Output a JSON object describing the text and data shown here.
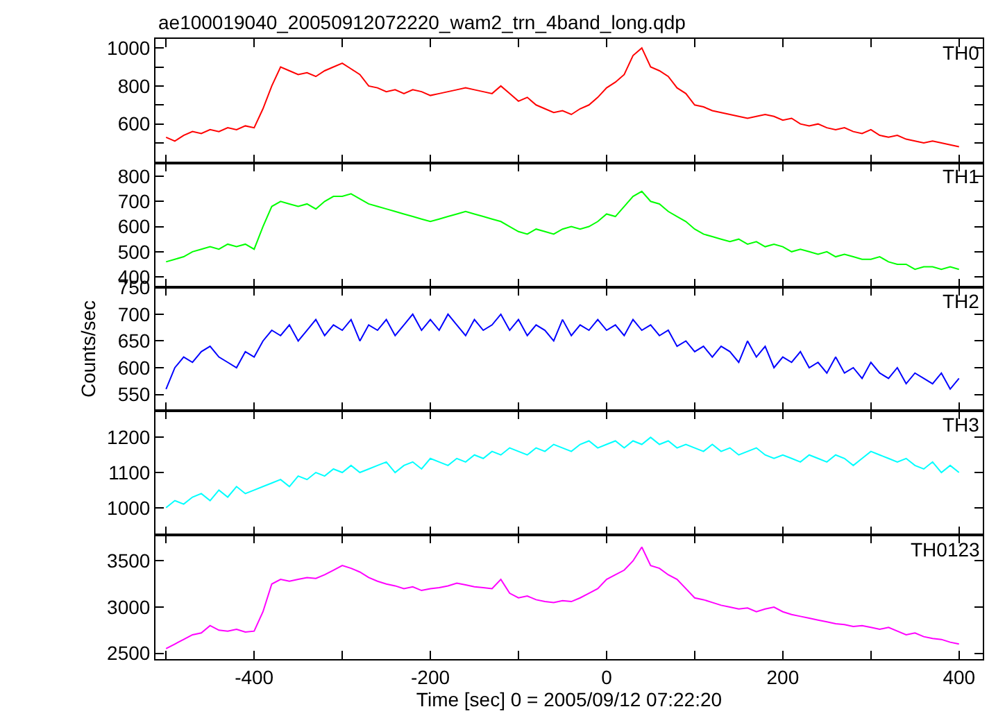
{
  "chart_data": [
    {
      "type": "line",
      "title": "ae100019040_20050912072220_wam2_trn_4band_long.qdp",
      "tick_labels": "y",
      "xlim": [
        -512,
        427
      ],
      "xticks": [
        {
          "value": -500,
          "label": null
        },
        -400,
        {
          "value": -300,
          "label": null
        },
        -200,
        {
          "value": -100,
          "label": null
        },
        0,
        {
          "value": 100,
          "label": null
        },
        200,
        {
          "value": 300,
          "label": null
        },
        400
      ],
      "ylim": [
        395,
        1048
      ],
      "yticks": [
        {
          "value": 500,
          "label": null
        },
        600,
        {
          "value": 700,
          "label": null
        },
        800,
        {
          "value": 900,
          "label": null
        },
        1000
      ],
      "x": [
        -500,
        -490,
        -480,
        -470,
        -460,
        -450,
        -440,
        -430,
        -420,
        -410,
        -400,
        -390,
        -380,
        -370,
        -360,
        -350,
        -340,
        -330,
        -320,
        -310,
        -300,
        -290,
        -280,
        -270,
        -260,
        -250,
        -240,
        -230,
        -220,
        -210,
        -200,
        -190,
        -180,
        -170,
        -160,
        -150,
        -140,
        -130,
        -120,
        -110,
        -100,
        -90,
        -80,
        -70,
        -60,
        -50,
        -40,
        -30,
        -20,
        -10,
        0,
        10,
        20,
        30,
        40,
        50,
        60,
        70,
        80,
        90,
        100,
        110,
        120,
        130,
        140,
        150,
        160,
        170,
        180,
        190,
        200,
        210,
        220,
        230,
        240,
        250,
        260,
        270,
        280,
        290,
        300,
        310,
        320,
        330,
        340,
        350,
        360,
        370,
        380,
        390,
        400
      ],
      "series": [
        {
          "name": "TH0",
          "color": "#ff0000",
          "values": [
            530,
            510,
            540,
            560,
            550,
            570,
            560,
            580,
            570,
            590,
            580,
            680,
            800,
            900,
            880,
            860,
            870,
            850,
            880,
            900,
            920,
            890,
            860,
            800,
            790,
            770,
            780,
            760,
            780,
            770,
            750,
            760,
            770,
            780,
            790,
            780,
            770,
            760,
            800,
            760,
            720,
            740,
            700,
            680,
            660,
            670,
            650,
            680,
            700,
            740,
            790,
            820,
            860,
            960,
            1000,
            900,
            880,
            850,
            790,
            760,
            700,
            690,
            670,
            660,
            650,
            640,
            630,
            640,
            650,
            640,
            620,
            630,
            600,
            590,
            600,
            580,
            570,
            580,
            560,
            550,
            570,
            540,
            530,
            540,
            520,
            510,
            500,
            510,
            500,
            490,
            480
          ]
        }
      ]
    },
    {
      "type": "line",
      "tick_labels": "y",
      "xlim": [
        -512,
        427
      ],
      "xticks": [
        {
          "value": -500,
          "label": null
        },
        -400,
        {
          "value": -300,
          "label": null
        },
        -200,
        {
          "value": -100,
          "label": null
        },
        0,
        {
          "value": 100,
          "label": null
        },
        200,
        {
          "value": 300,
          "label": null
        },
        400
      ],
      "ylim": [
        360,
        853
      ],
      "yticks": [
        400,
        500,
        600,
        700,
        800
      ],
      "x": [
        -500,
        -490,
        -480,
        -470,
        -460,
        -450,
        -440,
        -430,
        -420,
        -410,
        -400,
        -390,
        -380,
        -370,
        -360,
        -350,
        -340,
        -330,
        -320,
        -310,
        -300,
        -290,
        -280,
        -270,
        -260,
        -250,
        -240,
        -230,
        -220,
        -210,
        -200,
        -190,
        -180,
        -170,
        -160,
        -150,
        -140,
        -130,
        -120,
        -110,
        -100,
        -90,
        -80,
        -70,
        -60,
        -50,
        -40,
        -30,
        -20,
        -10,
        0,
        10,
        20,
        30,
        40,
        50,
        60,
        70,
        80,
        90,
        100,
        110,
        120,
        130,
        140,
        150,
        160,
        170,
        180,
        190,
        200,
        210,
        220,
        230,
        240,
        250,
        260,
        270,
        280,
        290,
        300,
        310,
        320,
        330,
        340,
        350,
        360,
        370,
        380,
        390,
        400
      ],
      "series": [
        {
          "name": "TH1",
          "color": "#00ff00",
          "values": [
            460,
            470,
            480,
            500,
            510,
            520,
            510,
            530,
            520,
            530,
            510,
            600,
            680,
            700,
            690,
            680,
            690,
            670,
            700,
            720,
            720,
            730,
            710,
            690,
            680,
            670,
            660,
            650,
            640,
            630,
            620,
            630,
            640,
            650,
            660,
            650,
            640,
            630,
            620,
            600,
            580,
            570,
            590,
            580,
            570,
            590,
            600,
            590,
            600,
            620,
            650,
            640,
            680,
            720,
            740,
            700,
            690,
            660,
            640,
            620,
            590,
            570,
            560,
            550,
            540,
            550,
            530,
            540,
            520,
            530,
            520,
            500,
            510,
            500,
            490,
            500,
            480,
            490,
            480,
            470,
            470,
            480,
            460,
            450,
            450,
            430,
            440,
            440,
            430,
            440,
            430
          ]
        }
      ]
    },
    {
      "type": "line",
      "ylabel": "Counts/sec",
      "tick_labels": "y",
      "xlim": [
        -512,
        427
      ],
      "xticks": [
        {
          "value": -500,
          "label": null
        },
        -400,
        {
          "value": -300,
          "label": null
        },
        -200,
        {
          "value": -100,
          "label": null
        },
        0,
        {
          "value": 100,
          "label": null
        },
        200,
        {
          "value": 300,
          "label": null
        },
        400
      ],
      "ylim": [
        519,
        751
      ],
      "yticks": [
        550,
        600,
        650,
        700,
        750
      ],
      "x": [
        -500,
        -490,
        -480,
        -470,
        -460,
        -450,
        -440,
        -430,
        -420,
        -410,
        -400,
        -390,
        -380,
        -370,
        -360,
        -350,
        -340,
        -330,
        -320,
        -310,
        -300,
        -290,
        -280,
        -270,
        -260,
        -250,
        -240,
        -230,
        -220,
        -210,
        -200,
        -190,
        -180,
        -170,
        -160,
        -150,
        -140,
        -130,
        -120,
        -110,
        -100,
        -90,
        -80,
        -70,
        -60,
        -50,
        -40,
        -30,
        -20,
        -10,
        0,
        10,
        20,
        30,
        40,
        50,
        60,
        70,
        80,
        90,
        100,
        110,
        120,
        130,
        140,
        150,
        160,
        170,
        180,
        190,
        200,
        210,
        220,
        230,
        240,
        250,
        260,
        270,
        280,
        290,
        300,
        310,
        320,
        330,
        340,
        350,
        360,
        370,
        380,
        390,
        400
      ],
      "series": [
        {
          "name": "TH2",
          "color": "#0000ff",
          "values": [
            560,
            600,
            620,
            610,
            630,
            640,
            620,
            610,
            600,
            630,
            620,
            650,
            670,
            660,
            680,
            650,
            670,
            690,
            660,
            680,
            670,
            690,
            650,
            680,
            670,
            690,
            660,
            680,
            700,
            670,
            690,
            670,
            700,
            680,
            660,
            690,
            670,
            680,
            700,
            670,
            690,
            660,
            680,
            670,
            650,
            690,
            660,
            680,
            670,
            690,
            670,
            680,
            660,
            690,
            670,
            680,
            660,
            670,
            640,
            650,
            630,
            640,
            620,
            640,
            630,
            610,
            650,
            620,
            640,
            600,
            620,
            610,
            630,
            600,
            610,
            590,
            620,
            590,
            600,
            580,
            610,
            590,
            580,
            600,
            570,
            590,
            580,
            570,
            590,
            560,
            580
          ]
        }
      ]
    },
    {
      "type": "line",
      "tick_labels": "y",
      "xlim": [
        -512,
        427
      ],
      "xticks": [
        {
          "value": -500,
          "label": null
        },
        -400,
        {
          "value": -300,
          "label": null
        },
        -200,
        {
          "value": -100,
          "label": null
        },
        0,
        {
          "value": 100,
          "label": null
        },
        200,
        {
          "value": 300,
          "label": null
        },
        400
      ],
      "ylim": [
        922,
        1275
      ],
      "yticks": [
        1000,
        1100,
        1200
      ],
      "x": [
        -500,
        -490,
        -480,
        -470,
        -460,
        -450,
        -440,
        -430,
        -420,
        -410,
        -400,
        -390,
        -380,
        -370,
        -360,
        -350,
        -340,
        -330,
        -320,
        -310,
        -300,
        -290,
        -280,
        -270,
        -260,
        -250,
        -240,
        -230,
        -220,
        -210,
        -200,
        -190,
        -180,
        -170,
        -160,
        -150,
        -140,
        -130,
        -120,
        -110,
        -100,
        -90,
        -80,
        -70,
        -60,
        -50,
        -40,
        -30,
        -20,
        -10,
        0,
        10,
        20,
        30,
        40,
        50,
        60,
        70,
        80,
        90,
        100,
        110,
        120,
        130,
        140,
        150,
        160,
        170,
        180,
        190,
        200,
        210,
        220,
        230,
        240,
        250,
        260,
        270,
        280,
        290,
        300,
        310,
        320,
        330,
        340,
        350,
        360,
        370,
        380,
        390,
        400
      ],
      "series": [
        {
          "name": "TH3",
          "color": "#00ffff",
          "values": [
            1000,
            1020,
            1010,
            1030,
            1040,
            1020,
            1050,
            1030,
            1060,
            1040,
            1050,
            1060,
            1070,
            1080,
            1060,
            1090,
            1080,
            1100,
            1090,
            1110,
            1100,
            1120,
            1100,
            1110,
            1120,
            1130,
            1100,
            1120,
            1130,
            1110,
            1140,
            1130,
            1120,
            1140,
            1130,
            1150,
            1140,
            1160,
            1150,
            1170,
            1160,
            1150,
            1170,
            1160,
            1180,
            1170,
            1160,
            1180,
            1190,
            1170,
            1180,
            1190,
            1170,
            1190,
            1180,
            1200,
            1180,
            1190,
            1170,
            1180,
            1170,
            1160,
            1180,
            1160,
            1170,
            1150,
            1160,
            1170,
            1150,
            1140,
            1150,
            1140,
            1130,
            1150,
            1140,
            1130,
            1150,
            1140,
            1120,
            1140,
            1160,
            1150,
            1140,
            1130,
            1140,
            1120,
            1110,
            1130,
            1100,
            1120,
            1100
          ]
        }
      ]
    },
    {
      "type": "line",
      "xlabel": "Time [sec] 0 = 2005/09/12 07:22:20",
      "xlim": [
        -512,
        427
      ],
      "xticks": [
        {
          "value": -500,
          "label": null
        },
        -400,
        {
          "value": -300,
          "label": null
        },
        -200,
        {
          "value": -100,
          "label": null
        },
        0,
        {
          "value": 100,
          "label": null
        },
        200,
        {
          "value": 300,
          "label": null
        },
        400
      ],
      "ylim": [
        2437,
        3780
      ],
      "yticks": [
        2500,
        3000,
        3500
      ],
      "x": [
        -500,
        -490,
        -480,
        -470,
        -460,
        -450,
        -440,
        -430,
        -420,
        -410,
        -400,
        -390,
        -380,
        -370,
        -360,
        -350,
        -340,
        -330,
        -320,
        -310,
        -300,
        -290,
        -280,
        -270,
        -260,
        -250,
        -240,
        -230,
        -220,
        -210,
        -200,
        -190,
        -180,
        -170,
        -160,
        -150,
        -140,
        -130,
        -120,
        -110,
        -100,
        -90,
        -80,
        -70,
        -60,
        -50,
        -40,
        -30,
        -20,
        -10,
        0,
        10,
        20,
        30,
        40,
        50,
        60,
        70,
        80,
        90,
        100,
        110,
        120,
        130,
        140,
        150,
        160,
        170,
        180,
        190,
        200,
        210,
        220,
        230,
        240,
        250,
        260,
        270,
        280,
        290,
        300,
        310,
        320,
        330,
        340,
        350,
        360,
        370,
        380,
        390,
        400
      ],
      "series": [
        {
          "name": "TH0123",
          "color": "#ff00ff",
          "values": [
            2550,
            2600,
            2650,
            2700,
            2720,
            2800,
            2750,
            2740,
            2760,
            2730,
            2740,
            2950,
            3250,
            3300,
            3280,
            3300,
            3320,
            3310,
            3350,
            3400,
            3450,
            3420,
            3380,
            3320,
            3280,
            3250,
            3230,
            3200,
            3220,
            3180,
            3200,
            3210,
            3230,
            3260,
            3240,
            3220,
            3210,
            3200,
            3300,
            3150,
            3100,
            3120,
            3080,
            3060,
            3050,
            3070,
            3060,
            3100,
            3150,
            3200,
            3300,
            3350,
            3400,
            3500,
            3650,
            3450,
            3420,
            3350,
            3300,
            3200,
            3100,
            3080,
            3050,
            3020,
            3000,
            2980,
            2990,
            2950,
            2980,
            3000,
            2950,
            2920,
            2900,
            2880,
            2860,
            2840,
            2820,
            2810,
            2790,
            2800,
            2780,
            2760,
            2780,
            2740,
            2700,
            2720,
            2680,
            2660,
            2650,
            2620,
            2600
          ]
        }
      ]
    }
  ]
}
